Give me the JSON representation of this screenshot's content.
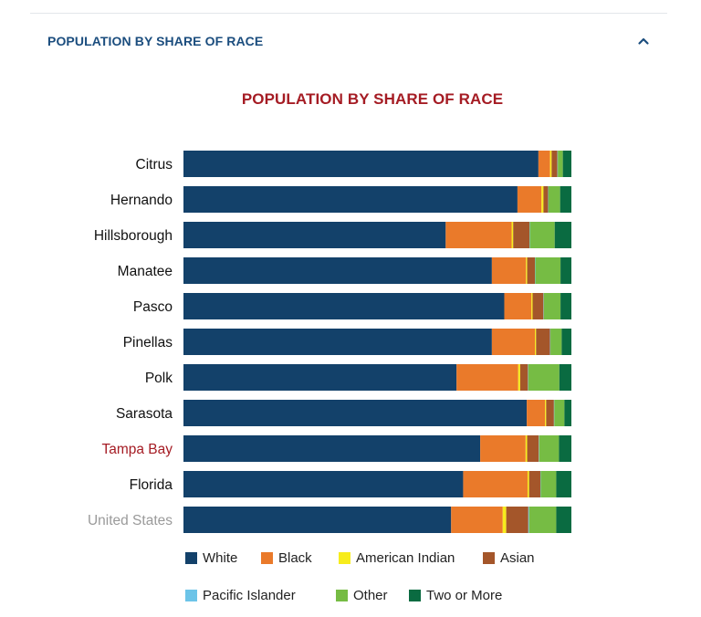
{
  "section": {
    "title": "POPULATION BY SHARE OF RACE",
    "toggle_icon": "chevron-up-icon"
  },
  "chart_data": {
    "type": "bar",
    "orientation": "horizontal",
    "stacked": true,
    "title": "POPULATION BY SHARE OF RACE",
    "xlabel": "",
    "ylabel": "",
    "xlim": [
      0,
      100
    ],
    "grid": false,
    "legend_position": "bottom",
    "categories": [
      "Citrus",
      "Hernando",
      "Hillsborough",
      "Manatee",
      "Pasco",
      "Pinellas",
      "Polk",
      "Sarasota",
      "Tampa Bay",
      "Florida",
      "United States"
    ],
    "category_colors": [
      "#111111",
      "#111111",
      "#111111",
      "#111111",
      "#111111",
      "#111111",
      "#111111",
      "#111111",
      "#a51c24",
      "#111111",
      "#9a9a9a"
    ],
    "series": [
      {
        "name": "White",
        "color": "#13416a",
        "values": [
          91.5,
          86.1,
          67.6,
          79.5,
          82.7,
          79.5,
          70.4,
          88.5,
          76.5,
          72.1,
          69.0
        ]
      },
      {
        "name": "Black",
        "color": "#ea7a2a",
        "values": [
          3.0,
          6.2,
          17.0,
          8.8,
          7.0,
          11.1,
          15.9,
          4.7,
          11.7,
          16.6,
          13.3
        ]
      },
      {
        "name": "American Indian",
        "color": "#f7ec1c",
        "values": [
          0.4,
          0.5,
          0.4,
          0.3,
          0.3,
          0.3,
          0.5,
          0.3,
          0.4,
          0.4,
          0.9
        ]
      },
      {
        "name": "Asian",
        "color": "#a4562a",
        "values": [
          1.5,
          1.2,
          4.2,
          2.0,
          2.8,
          3.6,
          2.0,
          2.0,
          3.0,
          2.9,
          5.7
        ]
      },
      {
        "name": "Pacific Islander",
        "color": "#6cc4e8",
        "values": [
          0.1,
          0.1,
          0.1,
          0.1,
          0.1,
          0.1,
          0.1,
          0.1,
          0.1,
          0.1,
          0.2
        ]
      },
      {
        "name": "Other",
        "color": "#76bc44",
        "values": [
          1.3,
          3.0,
          6.4,
          6.5,
          4.3,
          2.9,
          8.0,
          2.6,
          5.1,
          4.0,
          7.0
        ]
      },
      {
        "name": "Two or More",
        "color": "#0a6b41",
        "values": [
          2.2,
          2.9,
          4.3,
          2.8,
          2.8,
          2.5,
          3.1,
          1.8,
          3.2,
          3.9,
          3.9
        ]
      }
    ]
  }
}
